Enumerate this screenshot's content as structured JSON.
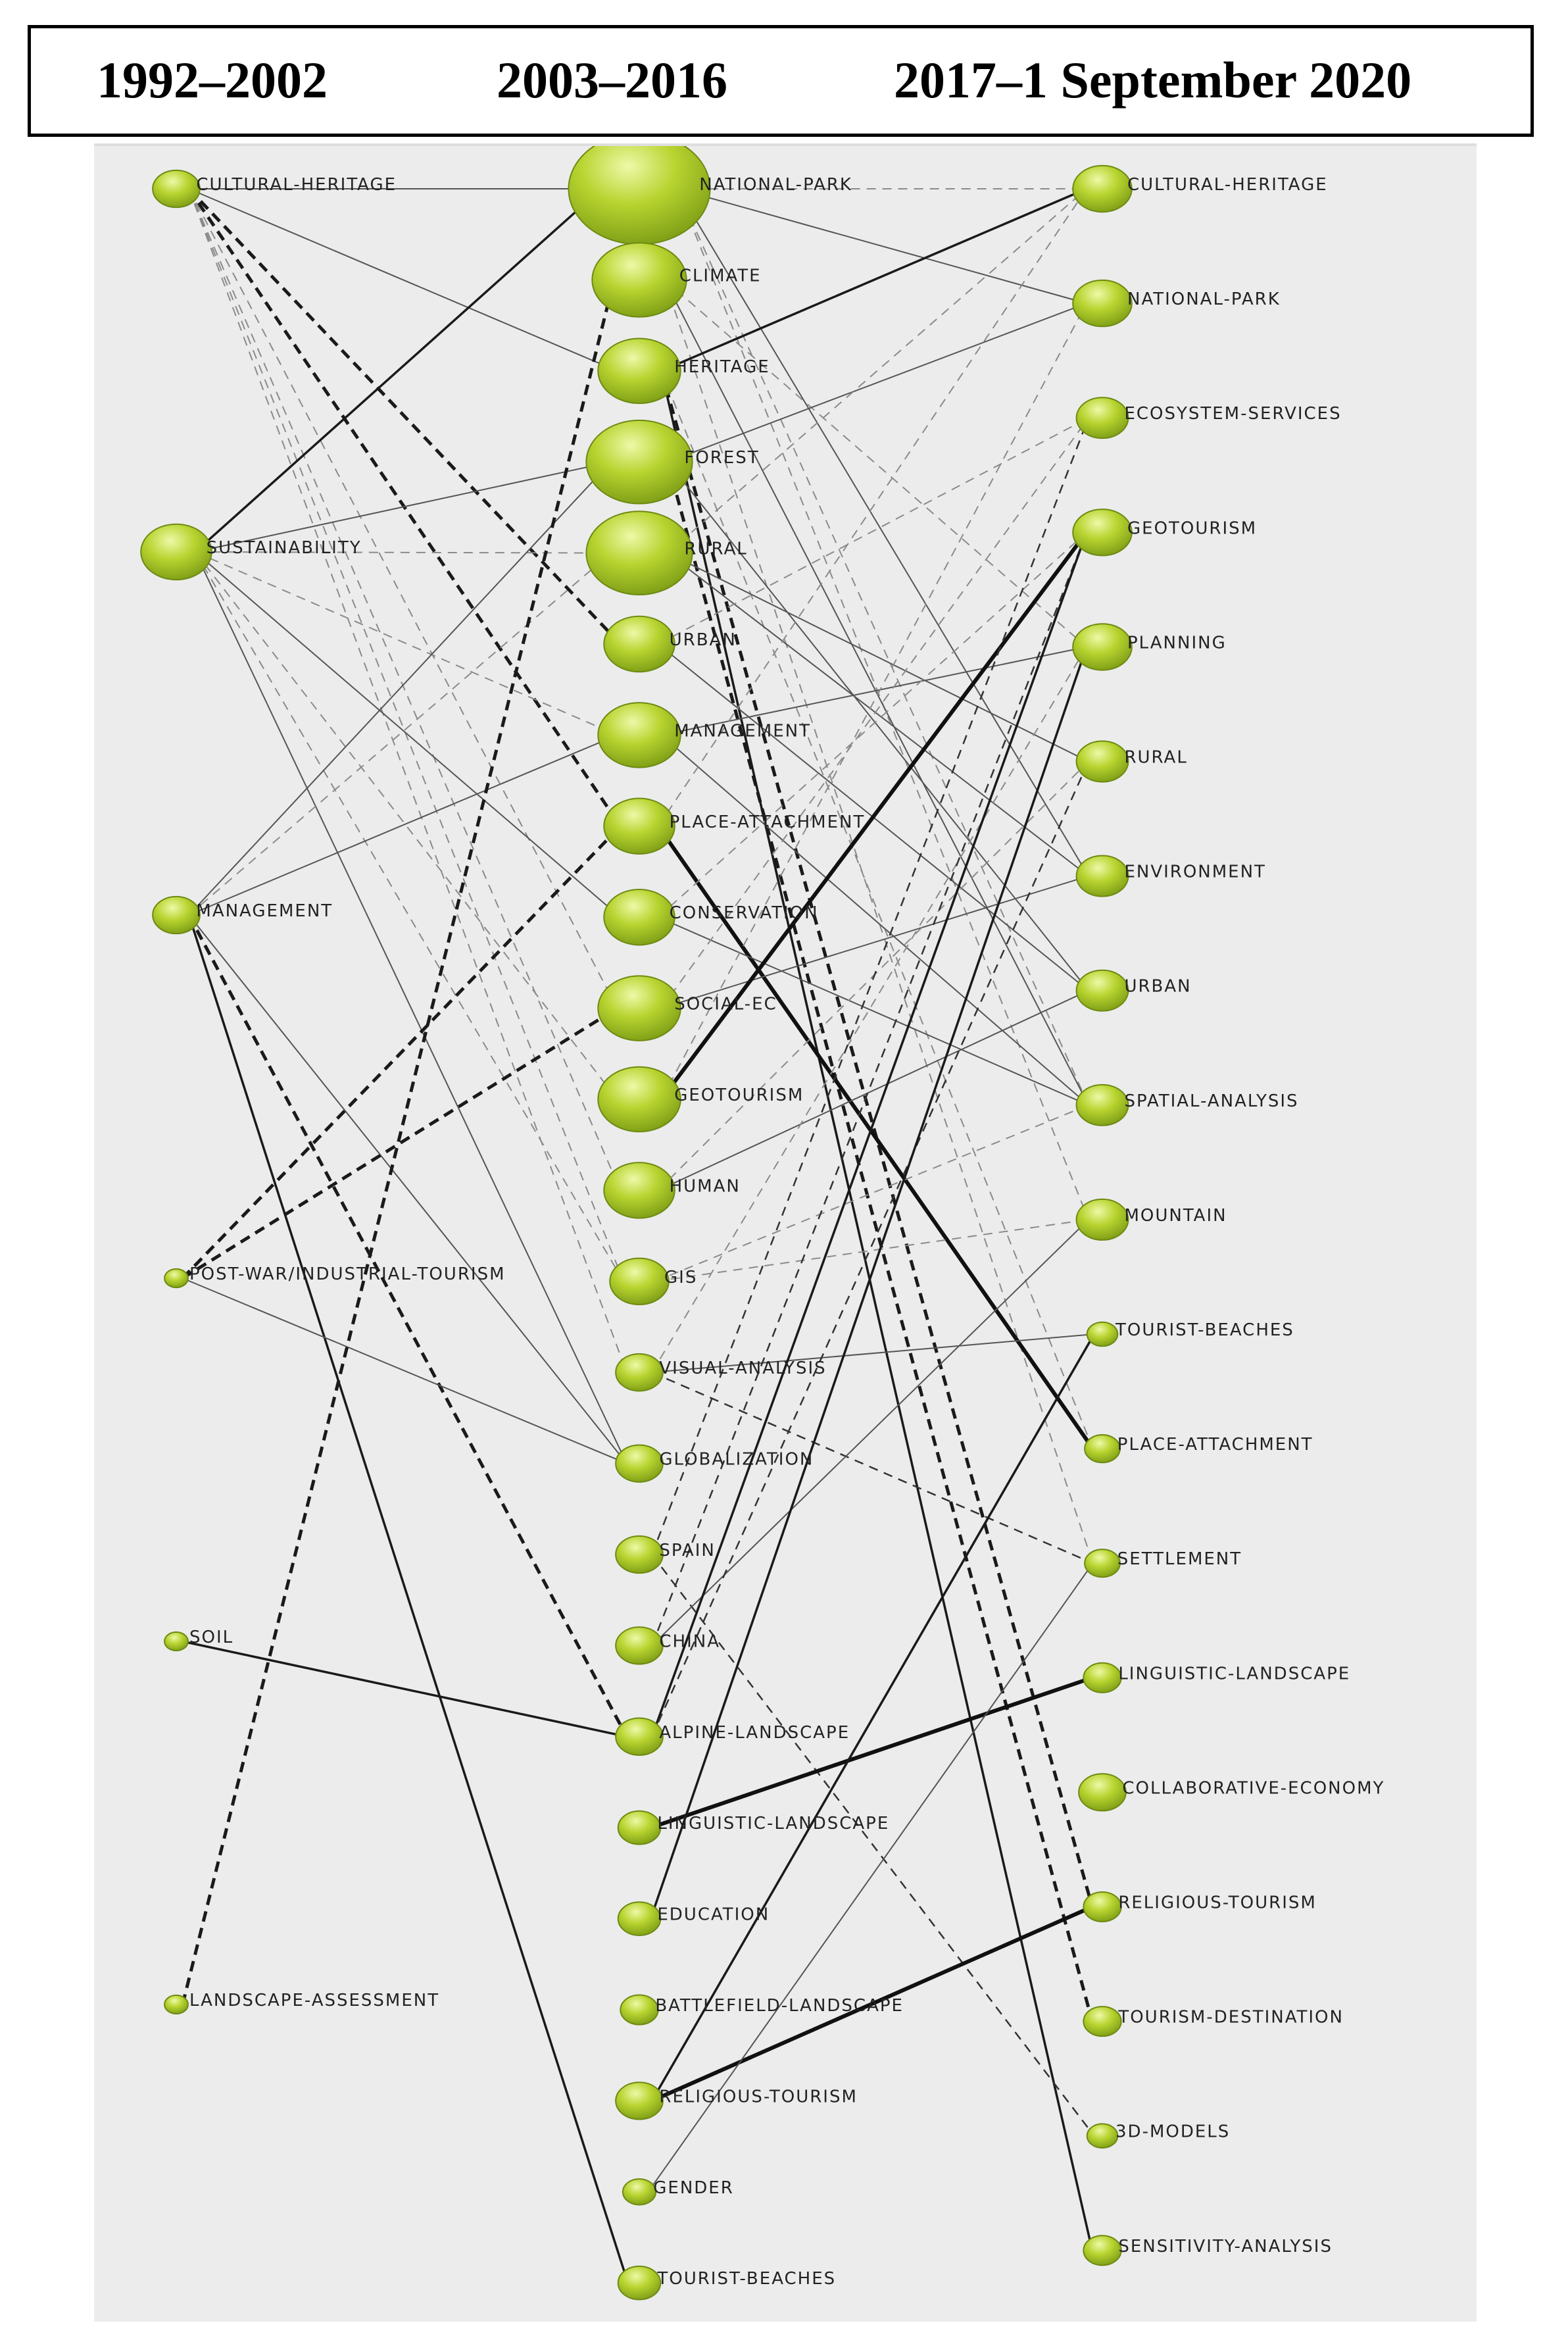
{
  "periods": [
    "1992–2002",
    "2003–2016",
    "2017–1 September 2020"
  ],
  "colors": {
    "node_fill": "#b8d430",
    "node_highlight": "#eaf79a",
    "node_stroke": "#6d8a12",
    "panel": "#ececec"
  },
  "columns": [
    {
      "id": "c1",
      "nodes": [
        {
          "label": "CULTURAL-HERITAGE",
          "size": 2
        },
        {
          "label": "SUSTAINABILITY",
          "size": 3
        },
        {
          "label": "MANAGEMENT",
          "size": 2
        },
        {
          "label": "POST-WAR/INDUSTRIAL-TOURISM",
          "size": 1
        },
        {
          "label": "SOIL",
          "size": 1
        },
        {
          "label": "LANDSCAPE-ASSESSMENT",
          "size": 1
        }
      ]
    },
    {
      "id": "c2",
      "nodes": [
        {
          "label": "NATIONAL-PARK",
          "size": 6
        },
        {
          "label": "CLIMATE",
          "size": 4
        },
        {
          "label": "HERITAGE",
          "size": 3.5
        },
        {
          "label": "FOREST",
          "size": 4.5
        },
        {
          "label": "RURAL",
          "size": 4.5
        },
        {
          "label": "URBAN",
          "size": 3
        },
        {
          "label": "MANAGEMENT",
          "size": 3.5
        },
        {
          "label": "PLACE-ATTACHMENT",
          "size": 3
        },
        {
          "label": "CONSERVATION",
          "size": 3
        },
        {
          "label": "SOCIAL-EC",
          "size": 3.5
        },
        {
          "label": "GEOTOURISM",
          "size": 3.5
        },
        {
          "label": "HUMAN",
          "size": 3
        },
        {
          "label": "GIS",
          "size": 2.5
        },
        {
          "label": "VISUAL-ANALYSIS",
          "size": 2
        },
        {
          "label": "GLOBALIZATION",
          "size": 2
        },
        {
          "label": "SPAIN",
          "size": 2
        },
        {
          "label": "CHINA",
          "size": 2
        },
        {
          "label": "ALPINE-LANDSCAPE",
          "size": 2
        },
        {
          "label": "LINGUISTIC-LANDSCAPE",
          "size": 1.8
        },
        {
          "label": "EDUCATION",
          "size": 1.8
        },
        {
          "label": "BATTLEFIELD-LANDSCAPE",
          "size": 1.6
        },
        {
          "label": "RELIGIOUS-TOURISM",
          "size": 2
        },
        {
          "label": "GENDER",
          "size": 1.4
        },
        {
          "label": "TOURIST-BEACHES",
          "size": 1.8
        }
      ]
    },
    {
      "id": "c3",
      "nodes": [
        {
          "label": "CULTURAL-HERITAGE",
          "size": 2.5
        },
        {
          "label": "NATIONAL-PARK",
          "size": 2.5
        },
        {
          "label": "ECOSYSTEM-SERVICES",
          "size": 2.2
        },
        {
          "label": "GEOTOURISM",
          "size": 2.5
        },
        {
          "label": "PLANNING",
          "size": 2.5
        },
        {
          "label": "RURAL",
          "size": 2.2
        },
        {
          "label": "ENVIRONMENT",
          "size": 2.2
        },
        {
          "label": "URBAN",
          "size": 2.2
        },
        {
          "label": "SPATIAL-ANALYSIS",
          "size": 2.2
        },
        {
          "label": "MOUNTAIN",
          "size": 2.2
        },
        {
          "label": "TOURIST-BEACHES",
          "size": 1.3
        },
        {
          "label": "PLACE-ATTACHMENT",
          "size": 1.5
        },
        {
          "label": "SETTLEMENT",
          "size": 1.5
        },
        {
          "label": "LINGUISTIC-LANDSCAPE",
          "size": 1.6
        },
        {
          "label": "COLLABORATIVE-ECONOMY",
          "size": 2
        },
        {
          "label": "RELIGIOUS-TOURISM",
          "size": 1.6
        },
        {
          "label": "TOURISM-DESTINATION",
          "size": 1.6
        },
        {
          "label": "3D-MODELS",
          "size": 1.3
        },
        {
          "label": "SENSITIVITY-ANALYSIS",
          "size": 1.6
        }
      ]
    }
  ],
  "links": [
    {
      "from": "c1:0",
      "to": "c2:0",
      "style": "thin"
    },
    {
      "from": "c1:0",
      "to": "c2:2",
      "style": "thin"
    },
    {
      "from": "c1:0",
      "to": "c2:7",
      "style": "dashed-bold"
    },
    {
      "from": "c1:0",
      "to": "c2:5",
      "style": "dashed-bold"
    },
    {
      "from": "c1:0",
      "to": "c2:11",
      "style": "dashed-light"
    },
    {
      "from": "c1:0",
      "to": "c2:12",
      "style": "dashed-light"
    },
    {
      "from": "c1:0",
      "to": "c2:9",
      "style": "dashed-light"
    },
    {
      "from": "c1:0",
      "to": "c2:13",
      "style": "dashed-light"
    },
    {
      "from": "c1:1",
      "to": "c2:0",
      "style": "solid"
    },
    {
      "from": "c1:1",
      "to": "c2:4",
      "style": "dashed-light"
    },
    {
      "from": "c1:1",
      "to": "c2:3",
      "style": "thin"
    },
    {
      "from": "c1:1",
      "to": "c2:8",
      "style": "thin"
    },
    {
      "from": "c1:1",
      "to": "c2:14",
      "style": "thin"
    },
    {
      "from": "c1:1",
      "to": "c2:10",
      "style": "dashed-light"
    },
    {
      "from": "c1:1",
      "to": "c2:12",
      "style": "dashed-light"
    },
    {
      "from": "c1:1",
      "to": "c2:6",
      "style": "dashed-light"
    },
    {
      "from": "c1:2",
      "to": "c2:3",
      "style": "thin"
    },
    {
      "from": "c1:2",
      "to": "c2:6",
      "style": "thin"
    },
    {
      "from": "c1:2",
      "to": "c2:4",
      "style": "dashed-light"
    },
    {
      "from": "c1:2",
      "to": "c2:14",
      "style": "thin"
    },
    {
      "from": "c1:2",
      "to": "c2:17",
      "style": "dashed-bold"
    },
    {
      "from": "c1:2",
      "to": "c2:23",
      "style": "solid"
    },
    {
      "from": "c1:3",
      "to": "c2:7",
      "style": "dashed-bold"
    },
    {
      "from": "c1:3",
      "to": "c2:9",
      "style": "dashed-bold"
    },
    {
      "from": "c1:3",
      "to": "c2:14",
      "style": "thin"
    },
    {
      "from": "c1:4",
      "to": "c2:17",
      "style": "solid"
    },
    {
      "from": "c1:5",
      "to": "c2:1",
      "style": "dashed-bold"
    },
    {
      "from": "c2:0",
      "to": "c3:0",
      "style": "dashed-light"
    },
    {
      "from": "c2:0",
      "to": "c3:1",
      "style": "thin"
    },
    {
      "from": "c2:0",
      "to": "c3:6",
      "style": "thin"
    },
    {
      "from": "c2:0",
      "to": "c3:8",
      "style": "dashed-light"
    },
    {
      "from": "c2:0",
      "to": "c3:9",
      "style": "dashed-light"
    },
    {
      "from": "c2:1",
      "to": "c3:4",
      "style": "dashed-light"
    },
    {
      "from": "c2:1",
      "to": "c3:8",
      "style": "thin"
    },
    {
      "from": "c2:1",
      "to": "c3:12",
      "style": "dashed-light"
    },
    {
      "from": "c2:2",
      "to": "c3:0",
      "style": "solid"
    },
    {
      "from": "c2:2",
      "to": "c3:11",
      "style": "dashed-light"
    },
    {
      "from": "c2:2",
      "to": "c3:15",
      "style": "dashed-bold"
    },
    {
      "from": "c2:2",
      "to": "c3:18",
      "style": "solid"
    },
    {
      "from": "c2:3",
      "to": "c3:1",
      "style": "thin"
    },
    {
      "from": "c2:3",
      "to": "c3:7",
      "style": "thin"
    },
    {
      "from": "c2:3",
      "to": "c3:16",
      "style": "dashed-bold"
    },
    {
      "from": "c2:4",
      "to": "c3:0",
      "style": "dashed-light"
    },
    {
      "from": "c2:4",
      "to": "c3:5",
      "style": "thin"
    },
    {
      "from": "c2:4",
      "to": "c3:6",
      "style": "thin"
    },
    {
      "from": "c2:5",
      "to": "c3:2",
      "style": "dashed-light"
    },
    {
      "from": "c2:5",
      "to": "c3:7",
      "style": "thin"
    },
    {
      "from": "c2:6",
      "to": "c3:4",
      "style": "thin"
    },
    {
      "from": "c2:6",
      "to": "c3:8",
      "style": "thin"
    },
    {
      "from": "c2:7",
      "to": "c3:11",
      "style": "solid-bold"
    },
    {
      "from": "c2:7",
      "to": "c3:0",
      "style": "dashed-light"
    },
    {
      "from": "c2:8",
      "to": "c3:3",
      "style": "dashed-light"
    },
    {
      "from": "c2:8",
      "to": "c3:8",
      "style": "thin"
    },
    {
      "from": "c2:9",
      "to": "c3:2",
      "style": "dashed-light"
    },
    {
      "from": "c2:9",
      "to": "c3:6",
      "style": "thin"
    },
    {
      "from": "c2:10",
      "to": "c3:3",
      "style": "solid-bold"
    },
    {
      "from": "c2:10",
      "to": "c3:1",
      "style": "dashed-light"
    },
    {
      "from": "c2:11",
      "to": "c3:7",
      "style": "thin"
    },
    {
      "from": "c2:11",
      "to": "c3:5",
      "style": "dashed-light"
    },
    {
      "from": "c2:12",
      "to": "c3:8",
      "style": "dashed-light"
    },
    {
      "from": "c2:12",
      "to": "c3:9",
      "style": "dashed-light"
    },
    {
      "from": "c2:13",
      "to": "c3:10",
      "style": "thin"
    },
    {
      "from": "c2:13",
      "to": "c3:12",
      "style": "dashed"
    },
    {
      "from": "c2:13",
      "to": "c3:4",
      "style": "dashed-light"
    },
    {
      "from": "c2:15",
      "to": "c3:2",
      "style": "dashed"
    },
    {
      "from": "c2:15",
      "to": "c3:17",
      "style": "dashed"
    },
    {
      "from": "c2:16",
      "to": "c3:3",
      "style": "dashed"
    },
    {
      "from": "c2:16",
      "to": "c3:9",
      "style": "thin"
    },
    {
      "from": "c2:17",
      "to": "c3:3",
      "style": "solid"
    },
    {
      "from": "c2:17",
      "to": "c3:5",
      "style": "dashed"
    },
    {
      "from": "c2:18",
      "to": "c3:13",
      "style": "solid-bold"
    },
    {
      "from": "c2:19",
      "to": "c3:4",
      "style": "solid"
    },
    {
      "from": "c2:21",
      "to": "c3:15",
      "style": "solid-bold"
    },
    {
      "from": "c2:21",
      "to": "c3:10",
      "style": "solid"
    },
    {
      "from": "c2:22",
      "to": "c3:12",
      "style": "thin"
    }
  ]
}
